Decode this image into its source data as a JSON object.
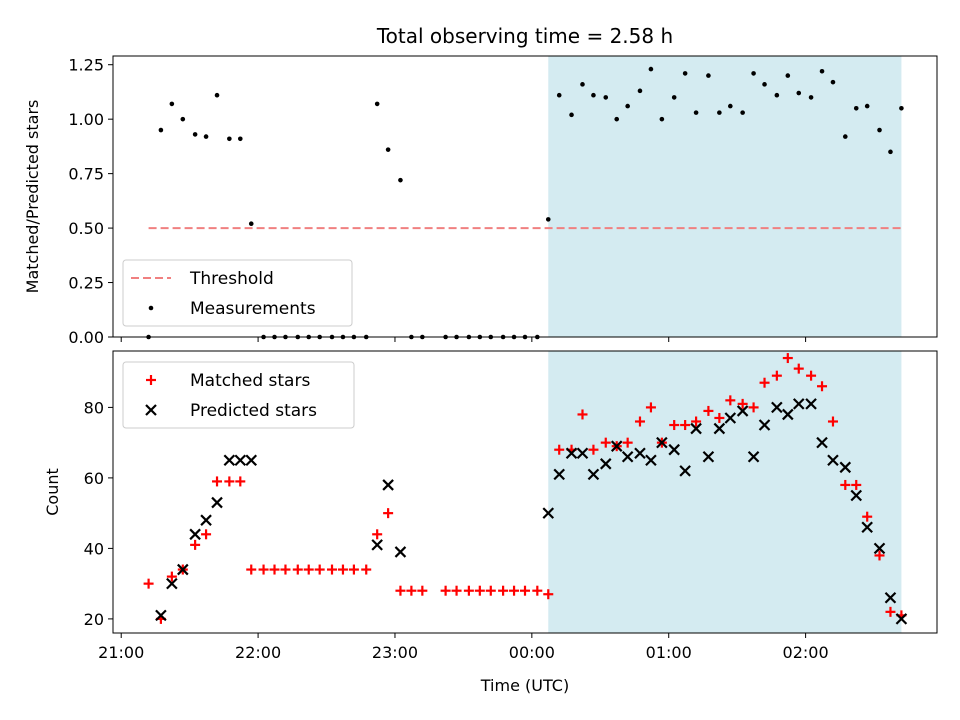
{
  "chart_data": {
    "title": "Total observing time = 2.58 h",
    "xlabel": "Time (UTC)",
    "x_tick_labels": [
      "21:00",
      "22:00",
      "23:00",
      "00:00",
      "01:00",
      "02:00"
    ],
    "x_ticks_hours": [
      21,
      22,
      23,
      24,
      25,
      26
    ],
    "xlim_hours": [
      20.94,
      26.96
    ],
    "shaded_span_hours": [
      24.12,
      26.7
    ],
    "shade_color": "#d4ebf1",
    "panels": [
      {
        "type": "scatter",
        "ylabel": "Matched/Predicted stars",
        "ylim": [
          0,
          1.29
        ],
        "yticks": [
          0,
          0.25,
          0.5,
          0.75,
          1.0,
          1.25
        ],
        "ytick_labels": [
          "0.00",
          "0.25",
          "0.50",
          "0.75",
          "1.00",
          "1.25"
        ],
        "legend": {
          "placement": "lower-left",
          "entries": [
            "Threshold",
            "Measurements"
          ]
        },
        "threshold": {
          "name": "Threshold",
          "y": 0.5,
          "x_range": [
            21.2,
            26.7
          ],
          "color": "#f08080",
          "style": "dashed"
        },
        "series": [
          {
            "name": "Measurements",
            "color": "#000000",
            "marker": "dot",
            "x": [
              21.2,
              21.29,
              21.37,
              21.45,
              21.54,
              21.62,
              21.7,
              21.79,
              21.87,
              21.95,
              22.04,
              22.12,
              22.2,
              22.29,
              22.37,
              22.45,
              22.54,
              22.62,
              22.7,
              22.79,
              22.87,
              22.95,
              23.04,
              23.12,
              23.2,
              23.37,
              23.45,
              23.54,
              23.62,
              23.7,
              23.79,
              23.87,
              23.95,
              24.04,
              24.12,
              24.2,
              24.29,
              24.37,
              24.45,
              24.54,
              24.62,
              24.7,
              24.79,
              24.87,
              24.95,
              25.04,
              25.12,
              25.2,
              25.29,
              25.37,
              25.45,
              25.54,
              25.62,
              25.7,
              25.79,
              25.87,
              25.95,
              26.04,
              26.12,
              26.2,
              26.29,
              26.37,
              26.45,
              26.54,
              26.62,
              26.7
            ],
            "y": [
              0.0,
              0.95,
              1.07,
              1.0,
              0.93,
              0.92,
              1.11,
              0.91,
              0.91,
              0.52,
              0.0,
              0.0,
              0.0,
              0.0,
              0.0,
              0.0,
              0.0,
              0.0,
              0.0,
              0.0,
              1.07,
              0.86,
              0.72,
              0.0,
              0.0,
              0.0,
              0.0,
              0.0,
              0.0,
              0.0,
              0.0,
              0.0,
              0.0,
              0.0,
              0.54,
              1.11,
              1.02,
              1.16,
              1.11,
              1.1,
              1.0,
              1.06,
              1.13,
              1.23,
              1.0,
              1.1,
              1.21,
              1.03,
              1.2,
              1.03,
              1.06,
              1.03,
              1.21,
              1.16,
              1.11,
              1.2,
              1.12,
              1.1,
              1.22,
              1.17,
              0.92,
              1.05,
              1.06,
              0.95,
              0.85,
              1.05
            ]
          }
        ]
      },
      {
        "type": "scatter",
        "ylabel": "Count",
        "ylim": [
          16,
          96
        ],
        "yticks": [
          20,
          40,
          60,
          80
        ],
        "ytick_labels": [
          "20",
          "40",
          "60",
          "80"
        ],
        "legend": {
          "placement": "upper-left",
          "entries": [
            "Matched stars",
            "Predicted stars"
          ]
        },
        "series": [
          {
            "name": "Matched stars",
            "color": "#ff0000",
            "marker": "plus",
            "x": [
              21.2,
              21.29,
              21.37,
              21.45,
              21.54,
              21.62,
              21.7,
              21.79,
              21.87,
              21.95,
              22.04,
              22.12,
              22.2,
              22.29,
              22.37,
              22.45,
              22.54,
              22.62,
              22.7,
              22.79,
              22.87,
              22.95,
              23.04,
              23.12,
              23.2,
              23.37,
              23.45,
              23.54,
              23.62,
              23.7,
              23.79,
              23.87,
              23.95,
              24.04,
              24.12,
              24.2,
              24.29,
              24.37,
              24.45,
              24.54,
              24.62,
              24.7,
              24.79,
              24.87,
              24.95,
              25.04,
              25.12,
              25.2,
              25.29,
              25.37,
              25.45,
              25.54,
              25.62,
              25.7,
              25.79,
              25.87,
              25.95,
              26.04,
              26.12,
              26.2,
              26.29,
              26.37,
              26.45,
              26.54,
              26.62,
              26.7
            ],
            "y": [
              30,
              20,
              32,
              34,
              41,
              44,
              59,
              59,
              59,
              34,
              34,
              34,
              34,
              34,
              34,
              34,
              34,
              34,
              34,
              34,
              44,
              50,
              28,
              28,
              28,
              28,
              28,
              28,
              28,
              28,
              28,
              28,
              28,
              28,
              27,
              68,
              68,
              78,
              68,
              70,
              69,
              70,
              76,
              80,
              70,
              75,
              75,
              76,
              79,
              77,
              82,
              81,
              80,
              87,
              89,
              94,
              91,
              89,
              86,
              76,
              58,
              58,
              49,
              38,
              22,
              21
            ]
          },
          {
            "name": "Predicted stars",
            "color": "#000000",
            "marker": "x",
            "x": [
              21.29,
              21.37,
              21.45,
              21.54,
              21.62,
              21.7,
              21.79,
              21.87,
              21.95,
              22.87,
              22.95,
              23.04,
              24.12,
              24.2,
              24.29,
              24.37,
              24.45,
              24.54,
              24.62,
              24.7,
              24.79,
              24.87,
              24.95,
              25.04,
              25.12,
              25.2,
              25.29,
              25.37,
              25.45,
              25.54,
              25.62,
              25.7,
              25.79,
              25.87,
              25.95,
              26.04,
              26.12,
              26.2,
              26.29,
              26.37,
              26.45,
              26.54,
              26.62,
              26.7
            ],
            "y": [
              21,
              30,
              34,
              44,
              48,
              53,
              65,
              65,
              65,
              41,
              58,
              39,
              50,
              61,
              67,
              67,
              61,
              64,
              69,
              66,
              67,
              65,
              70,
              68,
              62,
              74,
              66,
              74,
              77,
              79,
              66,
              75,
              80,
              78,
              81,
              81,
              70,
              65,
              63,
              55,
              46,
              40,
              26,
              20
            ]
          }
        ]
      }
    ]
  }
}
